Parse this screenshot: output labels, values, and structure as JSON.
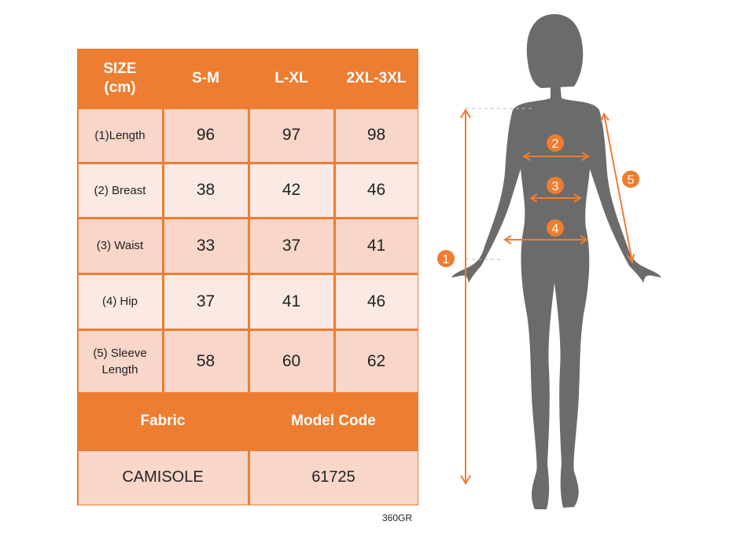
{
  "table": {
    "header": [
      "SIZE\n(cm)",
      "S-M",
      "L-XL",
      "2XL-3XL"
    ],
    "rows": [
      {
        "label": "(1)Length",
        "values": [
          "96",
          "97",
          "98"
        ]
      },
      {
        "label": "(2) Breast",
        "values": [
          "38",
          "42",
          "46"
        ]
      },
      {
        "label": "(3) Waist",
        "values": [
          "33",
          "37",
          "41"
        ]
      },
      {
        "label": "(4) Hip",
        "values": [
          "37",
          "41",
          "46"
        ]
      },
      {
        "label": "(5) Sleeve\nLength",
        "values": [
          "58",
          "60",
          "62"
        ]
      }
    ],
    "footer_headers": [
      "Fabric",
      "Model Code"
    ],
    "footer_values": [
      "CAMISOLE",
      "61725"
    ]
  },
  "product_code": "360GR",
  "figure": {
    "markers": [
      "1",
      "2",
      "3",
      "4",
      "5"
    ]
  },
  "colors": {
    "accent": "#ED7D31",
    "silhouette": "#6B6B6B",
    "row_odd": "#F8D6C9",
    "row_even": "#FBEAE4"
  }
}
